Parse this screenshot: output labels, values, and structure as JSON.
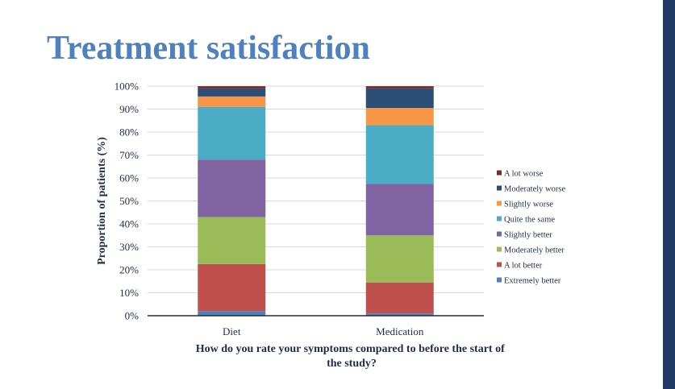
{
  "slide": {
    "title": "Treatment satisfaction",
    "accent_color": "#4f81bd",
    "bar_color": "#1f3864"
  },
  "chart_data": {
    "type": "bar",
    "stacked": true,
    "categories": [
      "Diet",
      "Medication"
    ],
    "ylabel": "Proportion of patients (%)",
    "xlabel": "How do you rate your symptoms compared to before the start of the study?",
    "xlabel_lines": [
      "How do you rate your symptoms compared to before the start of",
      "the study?"
    ],
    "ylim": [
      0,
      100
    ],
    "yticks": [
      0,
      10,
      20,
      30,
      40,
      50,
      60,
      70,
      80,
      90,
      100
    ],
    "ytick_labels": [
      "0%",
      "10%",
      "20%",
      "30%",
      "40%",
      "50%",
      "60%",
      "70%",
      "80%",
      "90%",
      "100%"
    ],
    "grid": true,
    "legend_position": "right",
    "series": [
      {
        "name": "Extremely better",
        "color": "#4f81bd",
        "values": [
          2,
          1
        ]
      },
      {
        "name": "A lot better",
        "color": "#c0504d",
        "values": [
          20.5,
          13.5
        ]
      },
      {
        "name": "Moderately better",
        "color": "#9bbb59",
        "values": [
          20.5,
          20.5
        ]
      },
      {
        "name": "Slightly better",
        "color": "#8064a2",
        "values": [
          25,
          22.5
        ]
      },
      {
        "name": "Quite the same",
        "color": "#4bacc6",
        "values": [
          23,
          25.5
        ]
      },
      {
        "name": "Slightly worse",
        "color": "#f79646",
        "values": [
          4.5,
          7.5
        ]
      },
      {
        "name": "Moderately worse",
        "color": "#2c4d75",
        "values": [
          3.5,
          8.5
        ]
      },
      {
        "name": "A lot worse",
        "color": "#772c2a",
        "values": [
          1,
          1
        ]
      }
    ]
  }
}
